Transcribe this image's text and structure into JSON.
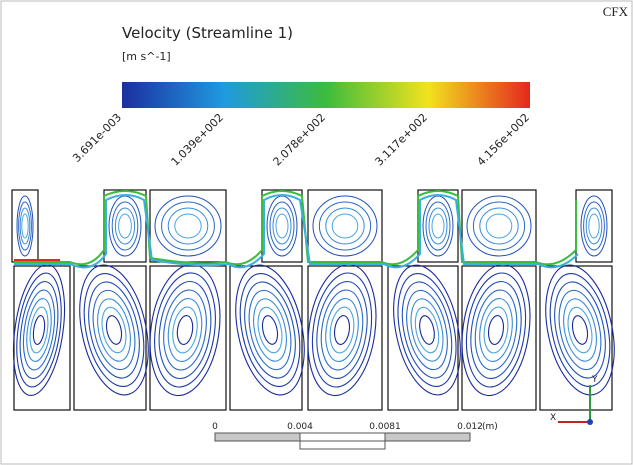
{
  "logo": "CFX",
  "legend": {
    "title": "Velocity (Streamline 1)",
    "unit": "[m s^-1]",
    "ticks": [
      "3.691e-003",
      "1.039e+002",
      "2.078e+002",
      "3.117e+002",
      "4.156e+002"
    ]
  },
  "scale_bar": {
    "ticks": [
      "0",
      "0.004",
      "0.0081",
      "0.012"
    ],
    "unit": "(m)"
  },
  "axes": {
    "y": "Y",
    "x": "X"
  }
}
